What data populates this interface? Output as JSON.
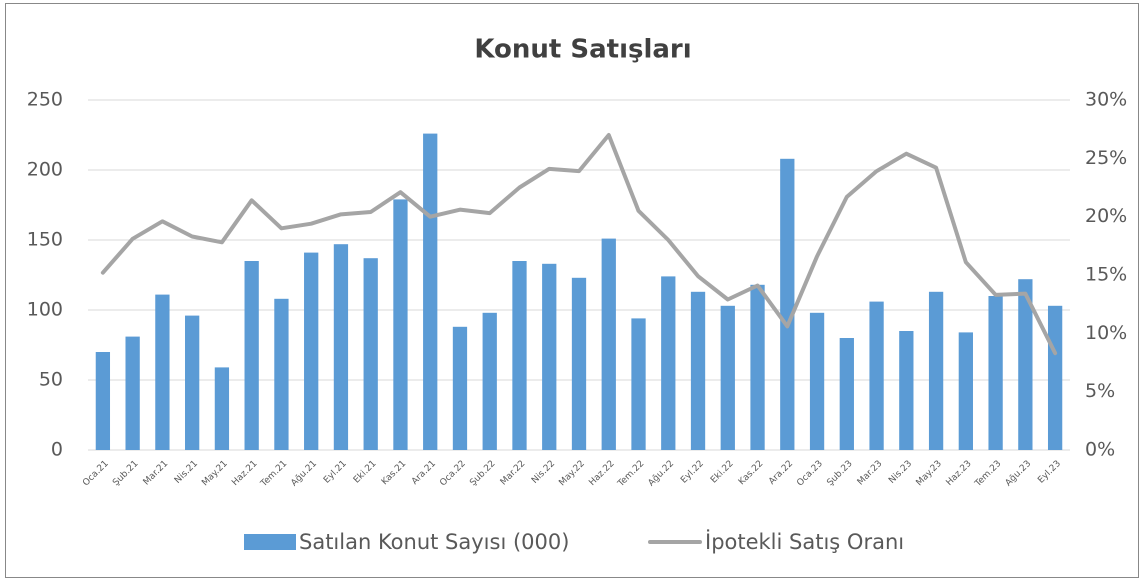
{
  "chart_data": {
    "type": "bar",
    "title": "Konut Satışları",
    "categories": [
      "Oca.21",
      "Şub.21",
      "Mar.21",
      "Nis.21",
      "May.21",
      "Haz.21",
      "Tem.21",
      "Ağu.21",
      "Eyl.21",
      "Eki.21",
      "Kas.21",
      "Ara.21",
      "Oca.22",
      "Şub.22",
      "Mar.22",
      "Nis.22",
      "May.22",
      "Haz.22",
      "Tem.22",
      "Ağu.22",
      "Eyl.22",
      "Eki.22",
      "Kas.22",
      "Ara.22",
      "Oca.23",
      "Şub.23",
      "Mar.23",
      "Nis.23",
      "May.23",
      "Haz.23",
      "Tem.23",
      "Ağu.23",
      "Eyl.23"
    ],
    "series": [
      {
        "name": "Satılan Konut Sayısı (000)",
        "type": "bar",
        "color": "#5b9bd5",
        "values": [
          70,
          81,
          111,
          96,
          59,
          135,
          108,
          141,
          147,
          137,
          179,
          226,
          88,
          98,
          135,
          133,
          123,
          151,
          94,
          124,
          113,
          103,
          118,
          208,
          98,
          80,
          106,
          85,
          113,
          84,
          110,
          122,
          103
        ]
      },
      {
        "name": "İpotekli Satış Oranı",
        "type": "line",
        "axis": "y2",
        "color": "#a5a5a5",
        "values": [
          15.2,
          18.1,
          19.6,
          18.3,
          17.8,
          21.4,
          19.0,
          19.4,
          20.2,
          20.4,
          22.1,
          20.0,
          20.6,
          20.3,
          22.5,
          24.1,
          23.9,
          27.0,
          20.5,
          18.0,
          14.9,
          12.9,
          14.1,
          10.6,
          16.6,
          21.7,
          23.9,
          25.4,
          24.2,
          16.1,
          13.3,
          13.4,
          8.3
        ]
      }
    ],
    "ylim": [
      0,
      250
    ],
    "yticks": [
      0,
      50,
      100,
      150,
      200,
      250
    ],
    "y2lim": [
      0,
      30
    ],
    "y2ticks": [
      {
        "value": 0,
        "label": "0%"
      },
      {
        "value": 5,
        "label": "5%"
      },
      {
        "value": 10,
        "label": "10%"
      },
      {
        "value": 15,
        "label": "15%"
      },
      {
        "value": 20,
        "label": "20%"
      },
      {
        "value": 25,
        "label": "25%"
      },
      {
        "value": 30,
        "label": "30%"
      }
    ],
    "grid": true,
    "legend": "bottom"
  }
}
